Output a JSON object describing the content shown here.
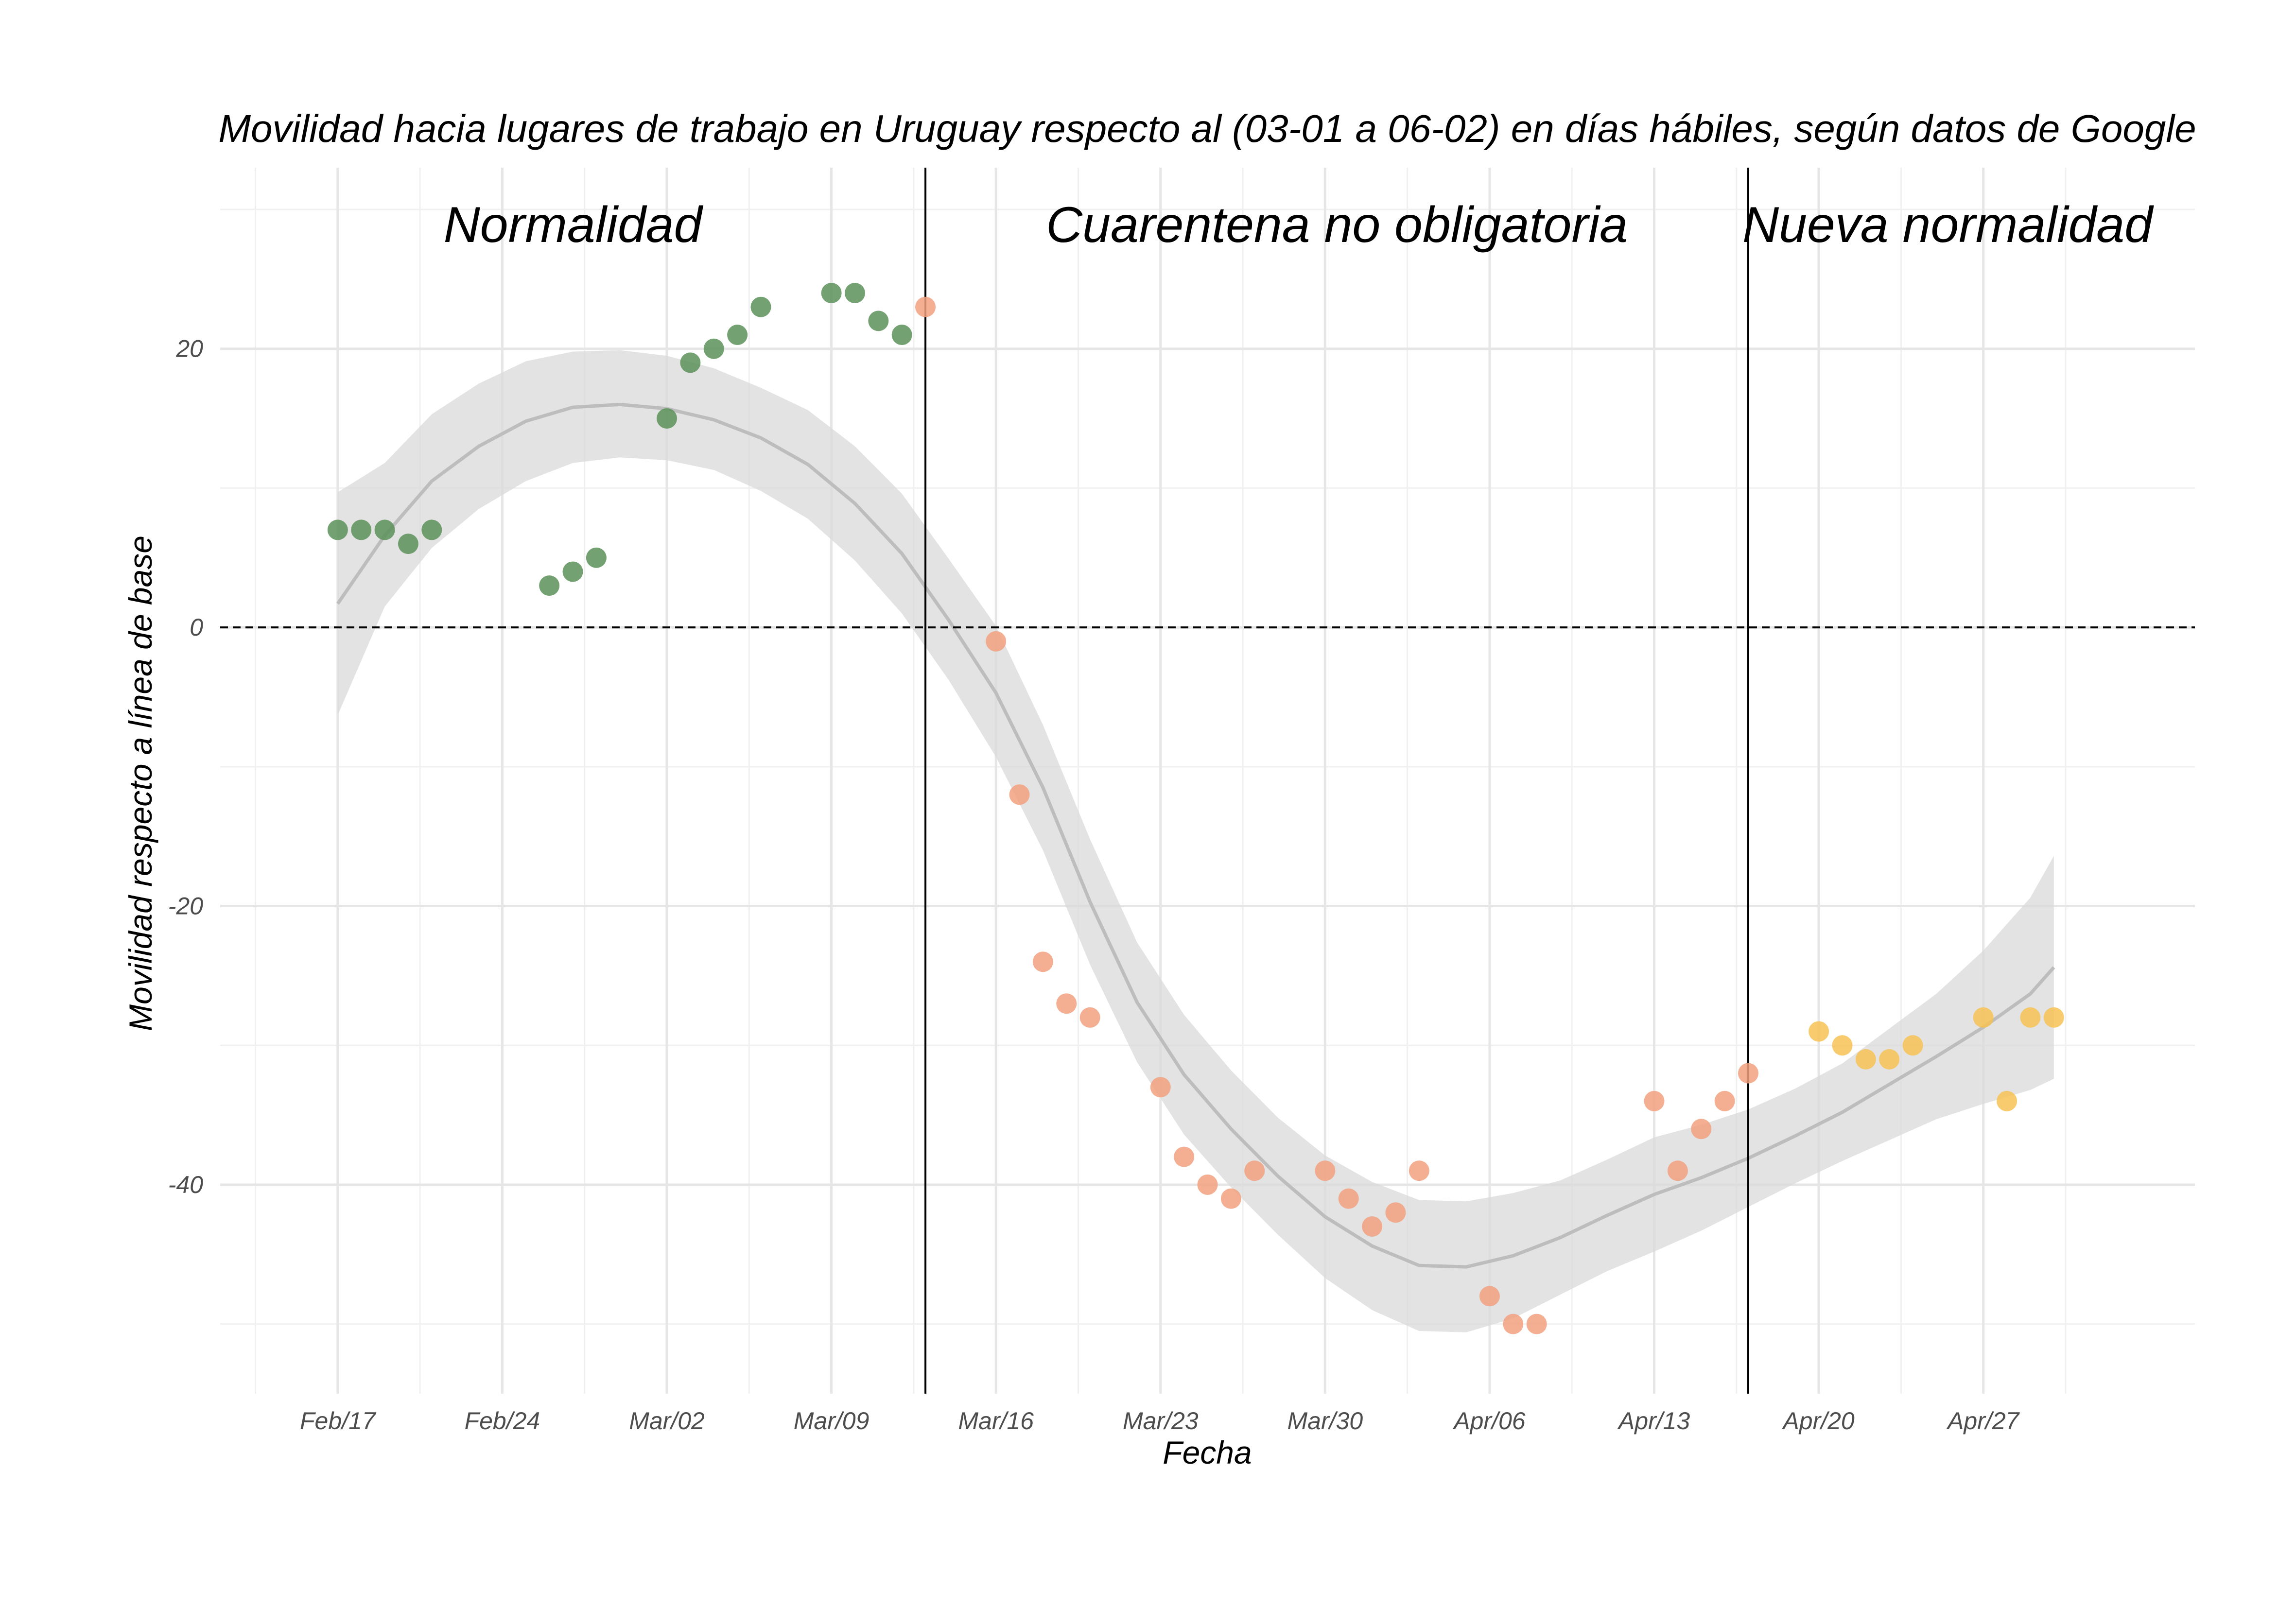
{
  "chart_data": {
    "type": "scatter",
    "title": "Movilidad hacia lugares de trabajo en Uruguay respecto al (03-01 a 06-02) en días hábiles, según datos de Google",
    "xlabel": "Fecha",
    "ylabel": "Movilidad respecto a línea de base",
    "x_start": "2020-02-17",
    "xlim": [
      "2020-02-12",
      "2020-05-06"
    ],
    "ylim": [
      -55,
      33
    ],
    "y_ticks": [
      -40,
      -20,
      0,
      20
    ],
    "x_ticks": [
      {
        "date": "2020-02-17",
        "label": "Feb/17"
      },
      {
        "date": "2020-02-24",
        "label": "Feb/24"
      },
      {
        "date": "2020-03-02",
        "label": "Mar/02"
      },
      {
        "date": "2020-03-09",
        "label": "Mar/09"
      },
      {
        "date": "2020-03-16",
        "label": "Mar/16"
      },
      {
        "date": "2020-03-23",
        "label": "Mar/23"
      },
      {
        "date": "2020-03-30",
        "label": "Mar/30"
      },
      {
        "date": "2020-04-06",
        "label": "Apr/06"
      },
      {
        "date": "2020-04-13",
        "label": "Apr/13"
      },
      {
        "date": "2020-04-20",
        "label": "Apr/20"
      },
      {
        "date": "2020-04-27",
        "label": "Apr/27"
      }
    ],
    "grid": true,
    "reference_line": {
      "y": 0,
      "style": "dashed"
    },
    "phase_boundaries": [
      "2020-03-13",
      "2020-04-17"
    ],
    "phases": [
      {
        "label": "Normalidad",
        "color": "#5b9158",
        "start": "2020-02-12",
        "end": "2020-03-13"
      },
      {
        "label": "Cuarentena no obligatoria",
        "color": "#f2a07f",
        "start": "2020-03-13",
        "end": "2020-04-17"
      },
      {
        "label": "Nueva normalidad",
        "color": "#f7c355",
        "start": "2020-04-17",
        "end": "2020-05-06"
      }
    ],
    "series": [
      {
        "phase": 0,
        "points": [
          {
            "x": "2020-02-17",
            "y": 7
          },
          {
            "x": "2020-02-18",
            "y": 7
          },
          {
            "x": "2020-02-19",
            "y": 7
          },
          {
            "x": "2020-02-20",
            "y": 6
          },
          {
            "x": "2020-02-21",
            "y": 7
          },
          {
            "x": "2020-02-26",
            "y": 3
          },
          {
            "x": "2020-02-27",
            "y": 4
          },
          {
            "x": "2020-02-28",
            "y": 5
          },
          {
            "x": "2020-03-02",
            "y": 15
          },
          {
            "x": "2020-03-03",
            "y": 19
          },
          {
            "x": "2020-03-04",
            "y": 20
          },
          {
            "x": "2020-03-05",
            "y": 21
          },
          {
            "x": "2020-03-06",
            "y": 23
          },
          {
            "x": "2020-03-09",
            "y": 24
          },
          {
            "x": "2020-03-10",
            "y": 24
          },
          {
            "x": "2020-03-11",
            "y": 22
          },
          {
            "x": "2020-03-12",
            "y": 21
          }
        ]
      },
      {
        "phase": 1,
        "points": [
          {
            "x": "2020-03-13",
            "y": 23
          },
          {
            "x": "2020-03-16",
            "y": -1
          },
          {
            "x": "2020-03-17",
            "y": -12
          },
          {
            "x": "2020-03-18",
            "y": -24
          },
          {
            "x": "2020-03-19",
            "y": -27
          },
          {
            "x": "2020-03-20",
            "y": -28
          },
          {
            "x": "2020-03-23",
            "y": -33
          },
          {
            "x": "2020-03-24",
            "y": -38
          },
          {
            "x": "2020-03-25",
            "y": -40
          },
          {
            "x": "2020-03-26",
            "y": -41
          },
          {
            "x": "2020-03-27",
            "y": -39
          },
          {
            "x": "2020-03-30",
            "y": -39
          },
          {
            "x": "2020-03-31",
            "y": -41
          },
          {
            "x": "2020-04-01",
            "y": -43
          },
          {
            "x": "2020-04-02",
            "y": -42
          },
          {
            "x": "2020-04-03",
            "y": -39
          },
          {
            "x": "2020-04-06",
            "y": -48
          },
          {
            "x": "2020-04-07",
            "y": -50
          },
          {
            "x": "2020-04-08",
            "y": -50
          },
          {
            "x": "2020-04-13",
            "y": -34
          },
          {
            "x": "2020-04-14",
            "y": -39
          },
          {
            "x": "2020-04-15",
            "y": -36
          },
          {
            "x": "2020-04-16",
            "y": -34
          },
          {
            "x": "2020-04-17",
            "y": -32
          }
        ]
      },
      {
        "phase": 2,
        "points": [
          {
            "x": "2020-04-20",
            "y": -29
          },
          {
            "x": "2020-04-21",
            "y": -30
          },
          {
            "x": "2020-04-22",
            "y": -31
          },
          {
            "x": "2020-04-23",
            "y": -31
          },
          {
            "x": "2020-04-24",
            "y": -30
          },
          {
            "x": "2020-04-27",
            "y": -28
          },
          {
            "x": "2020-04-28",
            "y": -34
          },
          {
            "x": "2020-04-29",
            "y": -28
          },
          {
            "x": "2020-04-30",
            "y": -28
          }
        ]
      }
    ],
    "smooth": {
      "color": "#bdbdbd",
      "band_color": "#d9d9d9",
      "points": [
        {
          "x": "2020-02-17",
          "y": 1.7,
          "lo": -6.3,
          "hi": 9.7
        },
        {
          "x": "2020-02-19",
          "y": 6.6,
          "lo": 1.5,
          "hi": 11.8
        },
        {
          "x": "2020-02-21",
          "y": 10.5,
          "lo": 5.7,
          "hi": 15.3
        },
        {
          "x": "2020-02-23",
          "y": 13.0,
          "lo": 8.5,
          "hi": 17.5
        },
        {
          "x": "2020-02-25",
          "y": 14.8,
          "lo": 10.5,
          "hi": 19.1
        },
        {
          "x": "2020-02-27",
          "y": 15.8,
          "lo": 11.8,
          "hi": 19.8
        },
        {
          "x": "2020-02-29",
          "y": 16.0,
          "lo": 12.2,
          "hi": 19.9
        },
        {
          "x": "2020-03-02",
          "y": 15.7,
          "lo": 12.0,
          "hi": 19.5
        },
        {
          "x": "2020-03-04",
          "y": 14.9,
          "lo": 11.3,
          "hi": 18.6
        },
        {
          "x": "2020-03-06",
          "y": 13.6,
          "lo": 9.8,
          "hi": 17.2
        },
        {
          "x": "2020-03-08",
          "y": 11.7,
          "lo": 7.8,
          "hi": 15.6
        },
        {
          "x": "2020-03-10",
          "y": 8.9,
          "lo": 4.8,
          "hi": 13.0
        },
        {
          "x": "2020-03-12",
          "y": 5.3,
          "lo": 1.0,
          "hi": 9.6
        },
        {
          "x": "2020-03-14",
          "y": 0.5,
          "lo": -3.8,
          "hi": 4.9
        },
        {
          "x": "2020-03-16",
          "y": -4.7,
          "lo": -9.3,
          "hi": 0.1
        },
        {
          "x": "2020-03-18",
          "y": -11.5,
          "lo": -16.0,
          "hi": -7.0
        },
        {
          "x": "2020-03-20",
          "y": -19.7,
          "lo": -24.2,
          "hi": -15.2
        },
        {
          "x": "2020-03-22",
          "y": -26.9,
          "lo": -31.2,
          "hi": -22.6
        },
        {
          "x": "2020-03-24",
          "y": -32.1,
          "lo": -36.4,
          "hi": -27.8
        },
        {
          "x": "2020-03-26",
          "y": -36.0,
          "lo": -40.2,
          "hi": -31.8
        },
        {
          "x": "2020-03-28",
          "y": -39.4,
          "lo": -43.6,
          "hi": -35.2
        },
        {
          "x": "2020-03-30",
          "y": -42.3,
          "lo": -46.7,
          "hi": -37.9
        },
        {
          "x": "2020-04-01",
          "y": -44.4,
          "lo": -49.0,
          "hi": -39.8
        },
        {
          "x": "2020-04-03",
          "y": -45.8,
          "lo": -50.5,
          "hi": -41.1
        },
        {
          "x": "2020-04-05",
          "y": -45.9,
          "lo": -50.6,
          "hi": -41.2
        },
        {
          "x": "2020-04-07",
          "y": -45.1,
          "lo": -49.6,
          "hi": -40.6
        },
        {
          "x": "2020-04-09",
          "y": -43.8,
          "lo": -47.9,
          "hi": -39.7
        },
        {
          "x": "2020-04-11",
          "y": -42.2,
          "lo": -46.2,
          "hi": -38.2
        },
        {
          "x": "2020-04-13",
          "y": -40.7,
          "lo": -44.8,
          "hi": -36.6
        },
        {
          "x": "2020-04-15",
          "y": -39.5,
          "lo": -43.3,
          "hi": -35.7
        },
        {
          "x": "2020-04-17",
          "y": -38.1,
          "lo": -41.6,
          "hi": -34.6
        },
        {
          "x": "2020-04-19",
          "y": -36.5,
          "lo": -39.9,
          "hi": -33.1
        },
        {
          "x": "2020-04-21",
          "y": -34.8,
          "lo": -38.3,
          "hi": -31.3
        },
        {
          "x": "2020-04-23",
          "y": -32.8,
          "lo": -36.8,
          "hi": -28.8
        },
        {
          "x": "2020-04-25",
          "y": -30.8,
          "lo": -35.3,
          "hi": -26.3
        },
        {
          "x": "2020-04-27",
          "y": -28.7,
          "lo": -34.2,
          "hi": -23.2
        },
        {
          "x": "2020-04-29",
          "y": -26.3,
          "lo": -33.2,
          "hi": -19.4
        },
        {
          "x": "2020-04-30",
          "y": -24.4,
          "lo": -32.4,
          "hi": -16.4
        }
      ]
    }
  }
}
